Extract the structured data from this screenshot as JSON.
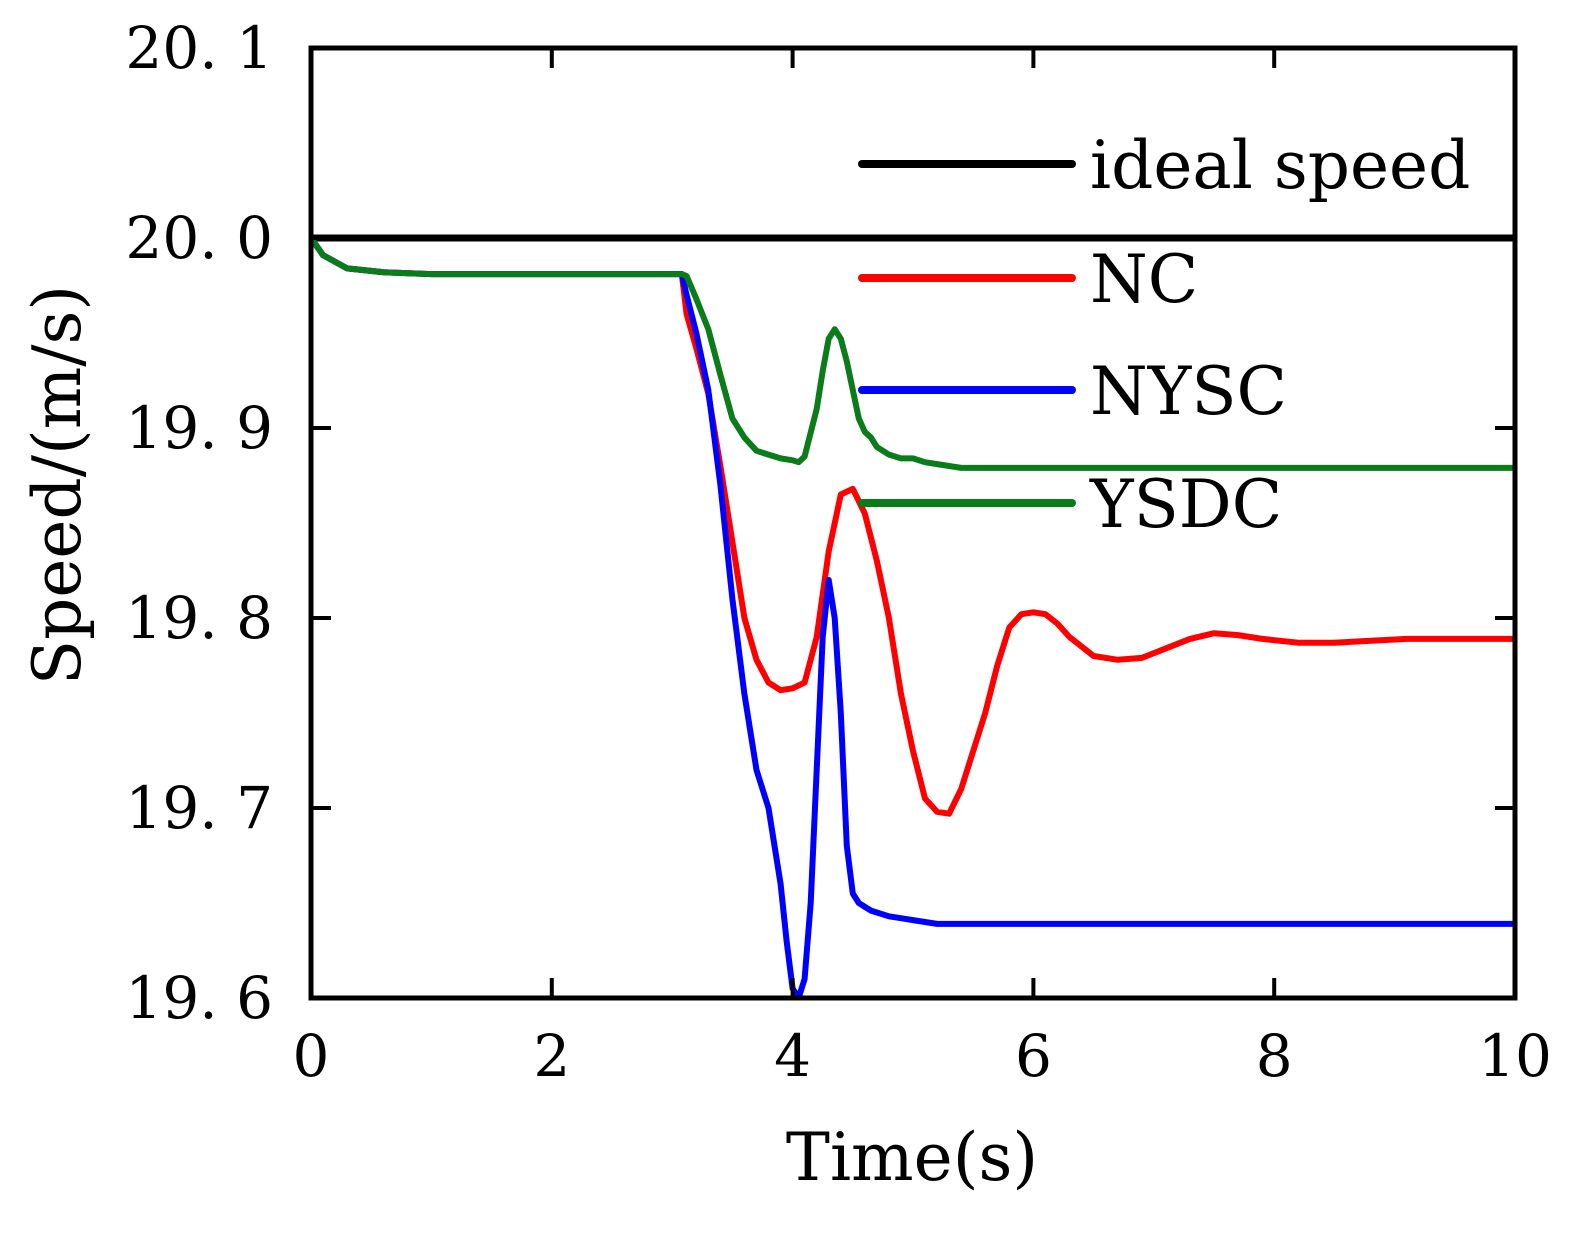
{
  "chart_data": {
    "type": "line",
    "title": "",
    "xlabel": "Time(s)",
    "ylabel": "Speed/(m/s)",
    "xlim": [
      0,
      10
    ],
    "ylim": [
      19.6,
      20.1
    ],
    "grid": false,
    "legend_position": "top-right",
    "x_ticks": [
      0,
      2,
      4,
      6,
      8,
      10
    ],
    "x_tick_labels": [
      "0",
      "2",
      "4",
      "6",
      "8",
      "10"
    ],
    "y_ticks": [
      19.6,
      19.7,
      19.8,
      19.9,
      20.0,
      20.1
    ],
    "y_tick_labels": [
      "19. 6",
      "19. 7",
      "19. 8",
      "19. 9",
      "20. 0",
      "20. 1"
    ],
    "series": [
      {
        "name": "ideal speed",
        "color": "#000000",
        "x": [
          0,
          10
        ],
        "y": [
          20.0,
          20.0
        ]
      },
      {
        "name": "NC",
        "color": "#ff0000",
        "x": [
          0,
          0.1,
          0.3,
          0.6,
          1.0,
          2.0,
          3.0,
          3.08,
          3.12,
          3.2,
          3.3,
          3.4,
          3.5,
          3.6,
          3.7,
          3.8,
          3.9,
          4.0,
          4.1,
          4.2,
          4.3,
          4.4,
          4.5,
          4.6,
          4.7,
          4.8,
          4.9,
          5.0,
          5.1,
          5.2,
          5.3,
          5.4,
          5.5,
          5.6,
          5.7,
          5.8,
          5.9,
          6.0,
          6.1,
          6.2,
          6.3,
          6.5,
          6.7,
          6.9,
          7.1,
          7.3,
          7.5,
          7.7,
          7.9,
          8.2,
          8.5,
          8.8,
          9.1,
          9.5,
          10.0
        ],
        "y": [
          20.0,
          19.991,
          19.984,
          19.982,
          19.981,
          19.981,
          19.981,
          19.981,
          19.96,
          19.942,
          19.918,
          19.88,
          19.84,
          19.8,
          19.778,
          19.766,
          19.762,
          19.763,
          19.766,
          19.79,
          19.835,
          19.865,
          19.868,
          19.855,
          19.83,
          19.8,
          19.76,
          19.73,
          19.705,
          19.698,
          19.697,
          19.71,
          19.73,
          19.75,
          19.775,
          19.795,
          19.802,
          19.803,
          19.802,
          19.797,
          19.79,
          19.78,
          19.778,
          19.779,
          19.784,
          19.789,
          19.792,
          19.791,
          19.789,
          19.787,
          19.787,
          19.788,
          19.789,
          19.789,
          19.789
        ]
      },
      {
        "name": "NYSC",
        "color": "#0000ff",
        "x": [
          0,
          0.1,
          0.3,
          0.6,
          1.0,
          2.0,
          3.0,
          3.08,
          3.12,
          3.2,
          3.3,
          3.4,
          3.5,
          3.6,
          3.7,
          3.8,
          3.9,
          3.95,
          4.0,
          4.05,
          4.1,
          4.15,
          4.2,
          4.25,
          4.3,
          4.35,
          4.4,
          4.45,
          4.5,
          4.55,
          4.6,
          4.65,
          4.7,
          4.8,
          4.9,
          5.0,
          5.1,
          5.2,
          5.3,
          5.4,
          5.6,
          5.8,
          6.0,
          7.0,
          8.0,
          10.0
        ],
        "y": [
          20.0,
          19.991,
          19.984,
          19.982,
          19.981,
          19.981,
          19.981,
          19.981,
          19.97,
          19.95,
          19.92,
          19.87,
          19.81,
          19.76,
          19.72,
          19.7,
          19.66,
          19.63,
          19.605,
          19.6,
          19.61,
          19.65,
          19.72,
          19.79,
          19.82,
          19.8,
          19.75,
          19.68,
          19.655,
          19.65,
          19.648,
          19.646,
          19.645,
          19.643,
          19.642,
          19.641,
          19.64,
          19.639,
          19.639,
          19.639,
          19.639,
          19.639,
          19.639,
          19.639,
          19.639,
          19.639
        ]
      },
      {
        "name": "YSDC",
        "color": "#0b7c1a",
        "x": [
          0,
          0.1,
          0.3,
          0.6,
          1.0,
          2.0,
          3.0,
          3.08,
          3.12,
          3.2,
          3.3,
          3.4,
          3.5,
          3.6,
          3.7,
          3.8,
          3.9,
          4.0,
          4.05,
          4.1,
          4.2,
          4.25,
          4.3,
          4.35,
          4.4,
          4.45,
          4.5,
          4.55,
          4.6,
          4.65,
          4.7,
          4.8,
          4.9,
          5.0,
          5.1,
          5.2,
          5.3,
          5.4,
          5.6,
          5.8,
          6.0,
          7.0,
          8.0,
          10.0
        ],
        "y": [
          20.0,
          19.991,
          19.984,
          19.982,
          19.981,
          19.981,
          19.981,
          19.981,
          19.98,
          19.968,
          19.952,
          19.928,
          19.905,
          19.895,
          19.888,
          19.886,
          19.884,
          19.883,
          19.882,
          19.885,
          19.91,
          19.93,
          19.947,
          19.952,
          19.947,
          19.935,
          19.92,
          19.905,
          19.898,
          19.895,
          19.89,
          19.886,
          19.884,
          19.884,
          19.882,
          19.881,
          19.88,
          19.879,
          19.879,
          19.879,
          19.879,
          19.879,
          19.879,
          19.879
        ]
      }
    ]
  }
}
